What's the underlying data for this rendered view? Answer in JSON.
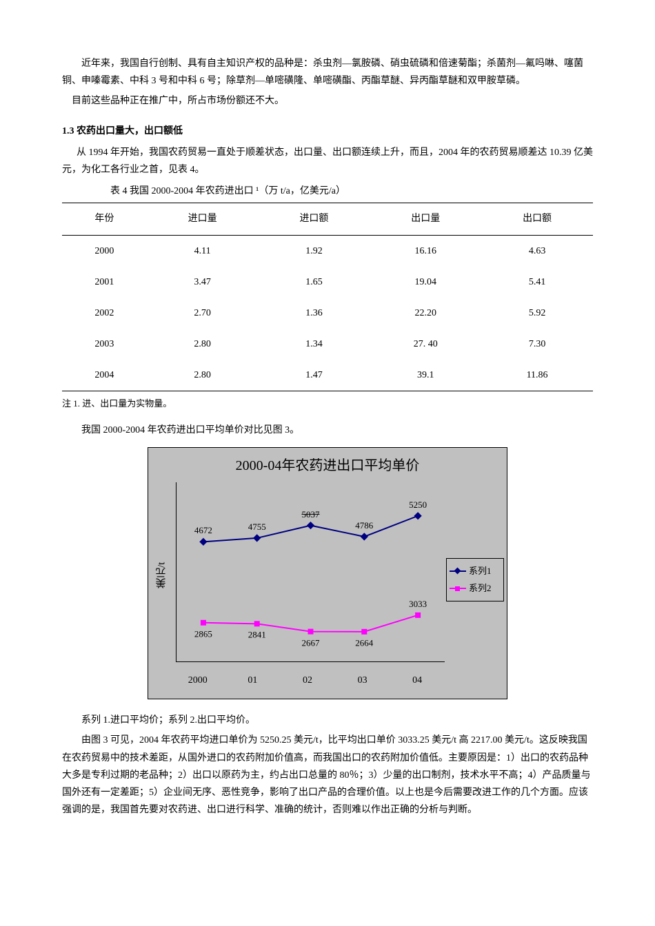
{
  "intro": {
    "p1": "近年来，我国自行创制、具有自主知识产权的品种是：杀虫剂—氯胺磷、硝虫硫磷和倍速菊酯；杀菌剂—氟吗啉、噻菌铜、申嗪霉素、中科 3 号和中科 6 号；除草剂—单嘧磺隆、单嘧磺酯、丙酯草醚、异丙酯草醚和双甲胺草磷。",
    "p2": "目前这些品种正在推广中，所占市场份额还不大。"
  },
  "section": {
    "heading": "1.3 农药出口量大，出口额低",
    "body": "从 1994 年开始，我国农药贸易一直处于顺差状态，出口量、出口额连续上升，而且，2004 年的农药贸易顺差达 10.39 亿美元，为化工各行业之首，见表 4。"
  },
  "table4": {
    "caption": "表 4  我国 2000-2004 年农药进出口 ¹（万 t/a，亿美元/a）",
    "columns": [
      "年份",
      "进口量",
      "进口额",
      "出口量",
      "出口额"
    ],
    "rows": [
      [
        "2000",
        "4.11",
        "1.92",
        "16.16",
        "4.63"
      ],
      [
        "2001",
        "3.47",
        "1.65",
        "19.04",
        "5.41"
      ],
      [
        "2002",
        "2.70",
        "1.36",
        "22.20",
        "5.92"
      ],
      [
        "2003",
        "2.80",
        "1.34",
        "27. 40",
        "7.30"
      ],
      [
        "2004",
        "2.80",
        "1.47",
        "39.1",
        "11.86"
      ]
    ],
    "footnote": "注 1. 进、出口量为实物量。"
  },
  "chart_intro": "我国 2000-2004 年农药进出口平均单价对比见图 3。",
  "chart": {
    "type": "line",
    "title": "2000-04年农药进出口平均单价",
    "ylabel": "美元/t",
    "categories": [
      "2000",
      "01",
      "02",
      "03",
      "04"
    ],
    "series": [
      {
        "name": "系列1",
        "color": "#000080",
        "marker": "diamond",
        "values": [
          4672,
          4755,
          5037,
          4786,
          5250
        ],
        "strike": [
          false,
          false,
          true,
          false,
          false
        ],
        "label_pos": [
          "above",
          "above",
          "above",
          "above",
          "above"
        ]
      },
      {
        "name": "系列2",
        "color": "#ff00ff",
        "marker": "square",
        "values": [
          2865,
          2841,
          2667,
          2664,
          3033
        ],
        "strike": [
          false,
          false,
          false,
          false,
          false
        ],
        "label_pos": [
          "below",
          "below",
          "below",
          "below",
          "above"
        ]
      }
    ],
    "ylim": [
      2000,
      6000
    ],
    "background_color": "#c0c0c0",
    "legend_labels": [
      "系列1",
      "系列2"
    ]
  },
  "chart_caption": "系列 1.进口平均价；系列 2.出口平均价。",
  "conclusion": "由图 3 可见，2004 年农药平均进口单价为 5250.25 美元/t，比平均出口单价 3033.25 美元/t 高 2217.00 美元/t。这反映我国在农药贸易中的技术差距，从国外进口的农药附加价值高，而我国出口的农药附加价值低。主要原因是：1）出口的农药品种大多是专利过期的老品种；2）出口以原药为主，约占出口总量的 80％；3）少量的出口制剂，技术水平不高；4）产品质量与国外还有一定差距；5）企业间无序、恶性竞争，影响了出口产品的合理价值。以上也是今后需要改进工作的几个方面。应该强调的是，我国首先要对农药进、出口进行科学、准确的统计，否则难以作出正确的分析与判断。"
}
